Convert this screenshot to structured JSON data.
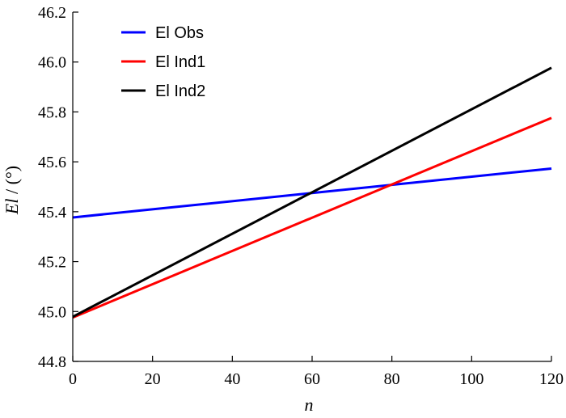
{
  "chart_data": {
    "type": "line",
    "title": "",
    "xlabel": "n",
    "ylabel_italic": "El",
    "ylabel_unit": " / (°)",
    "xlim": [
      0,
      120
    ],
    "ylim": [
      44.8,
      46.2
    ],
    "xticks": [
      0,
      20,
      40,
      60,
      80,
      100,
      120
    ],
    "xtick_labels": [
      "0",
      "20",
      "40",
      "60",
      "80",
      "100",
      "120"
    ],
    "yticks": [
      44.8,
      45.0,
      45.2,
      45.4,
      45.6,
      45.8,
      46.0,
      46.2
    ],
    "ytick_labels": [
      "44.8",
      "45.0",
      "45.2",
      "45.4",
      "45.6",
      "45.8",
      "46.0",
      "46.2"
    ],
    "grid": false,
    "legend_position": "top-left",
    "series": [
      {
        "name": "El Obs",
        "color": "#0000ff",
        "x": [
          0,
          120
        ],
        "y": [
          45.377,
          45.573
        ]
      },
      {
        "name": "El Ind1",
        "color": "#ff0000",
        "x": [
          0,
          120
        ],
        "y": [
          44.976,
          45.776
        ]
      },
      {
        "name": "El Ind2",
        "color": "#000000",
        "x": [
          0,
          120
        ],
        "y": [
          44.979,
          45.977
        ]
      }
    ]
  }
}
